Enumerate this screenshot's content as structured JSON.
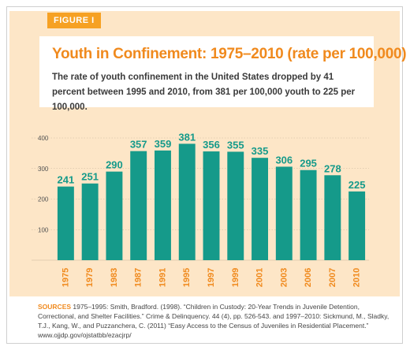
{
  "figure_label": "FIGURE I",
  "sources_label": "SOURCES",
  "sources_text": "1975–1995: Smith, Bradford. (1998). “Children in Custody: 20-Year Trends in Juvenile Detention, Correctional, and Shelter Facilities.” Crime & Delinquency. 44 (4), pp. 526-543. and 1997–2010: Sickmund, M., Sladky, T.J., Kang, W., and Puzzanchera, C. (2011) “Easy Access to the Census of Juveniles in Residential Placement.” www.ojjdp.gov/ojstatbb/ezacjrp/",
  "colors": {
    "bar": "#159a8a",
    "value_label": "#159a8a",
    "category_label": "#f08a1e",
    "accent": "#f6a123",
    "band": "#fde6c7"
  },
  "chart_data": {
    "type": "bar",
    "title": "Youth in Confinement: 1975–2010 (rate per 100,000)",
    "subtitle": "The rate of youth confinement in the United States dropped by 41 percent between 1995 and 2010, from 381 per 100,000 youth to 225 per 100,000.",
    "categories": [
      "1975",
      "1979",
      "1983",
      "1987",
      "1991",
      "1995",
      "1997",
      "1999",
      "2001",
      "2003",
      "2006",
      "2007",
      "2010"
    ],
    "values": [
      241,
      251,
      290,
      357,
      359,
      381,
      356,
      355,
      335,
      306,
      295,
      278,
      225
    ],
    "yticks": [
      "100",
      "200",
      "300",
      "400"
    ],
    "ytick_values": [
      100,
      200,
      300,
      400
    ],
    "ylim": [
      0,
      400
    ],
    "xlabel": "",
    "ylabel": "",
    "grid": true
  }
}
